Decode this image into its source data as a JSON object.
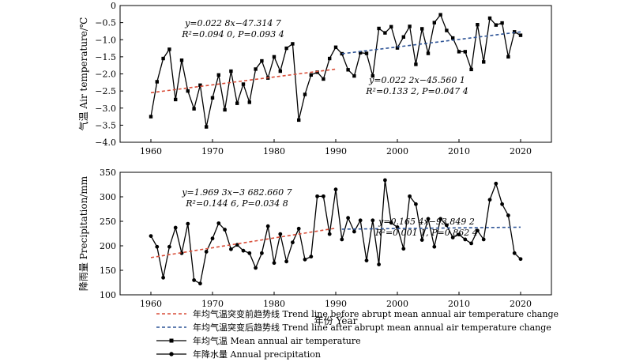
{
  "chart_data": [
    {
      "type": "line",
      "ylabel": "气温 Air temperature/℃",
      "xlabel": "",
      "xlim": [
        1955,
        2025
      ],
      "ylim": [
        -4.0,
        0
      ],
      "x_ticks": [
        1960,
        1970,
        1980,
        1990,
        2000,
        2010,
        2020
      ],
      "y_ticks": [
        -4.0,
        -3.5,
        -3.0,
        -2.5,
        -2.0,
        -1.5,
        -1.0,
        -0.5,
        0
      ],
      "y_tick_labels": [
        "−4.0",
        "−3.5",
        "−3.0",
        "−2.5",
        "−2.0",
        "−1.5",
        "−1.0",
        "−0.5",
        "0"
      ],
      "series": [
        {
          "name": "年均气温 Mean annual air temperature",
          "marker": "square",
          "color": "#000000",
          "x": [
            1960,
            1961,
            1962,
            1963,
            1964,
            1965,
            1966,
            1967,
            1968,
            1969,
            1970,
            1971,
            1972,
            1973,
            1974,
            1975,
            1976,
            1977,
            1978,
            1979,
            1980,
            1981,
            1982,
            1983,
            1984,
            1985,
            1986,
            1987,
            1988,
            1989,
            1990,
            1991,
            1992,
            1993,
            1994,
            1995,
            1996,
            1997,
            1998,
            1999,
            2000,
            2001,
            2002,
            2003,
            2004,
            2005,
            2006,
            2007,
            2008,
            2009,
            2010,
            2011,
            2012,
            2013,
            2014,
            2015,
            2016,
            2017,
            2018,
            2019,
            2020
          ],
          "values": [
            -3.25,
            -2.23,
            -1.55,
            -1.28,
            -2.75,
            -1.6,
            -2.5,
            -3.02,
            -2.33,
            -3.55,
            -2.7,
            -2.03,
            -3.05,
            -1.92,
            -2.86,
            -2.3,
            -2.83,
            -1.86,
            -1.62,
            -2.12,
            -1.5,
            -1.92,
            -1.25,
            -1.12,
            -3.35,
            -2.6,
            -2.03,
            -1.95,
            -2.15,
            -1.55,
            -1.22,
            -1.41,
            -1.88,
            -2.06,
            -1.38,
            -1.4,
            -2.06,
            -0.67,
            -0.8,
            -0.62,
            -1.24,
            -0.92,
            -0.61,
            -1.72,
            -0.68,
            -1.4,
            -0.5,
            -0.27,
            -0.73,
            -0.95,
            -1.35,
            -1.35,
            -1.87,
            -0.56,
            -1.65,
            -0.37,
            -0.57,
            -0.51,
            -1.5,
            -0.77,
            -0.87
          ]
        },
        {
          "name": "年均气温突变前趋势线 Trend line before abrupt mean annual air temperature change",
          "style": "dashed",
          "color": "#d94f3a",
          "x": [
            1960,
            1990
          ],
          "values": [
            -2.55,
            -1.86
          ]
        },
        {
          "name": "年均气温突变后趋势线 Trend line after abrupt mean annual air temperature change",
          "style": "dashed",
          "color": "#2f5597",
          "x": [
            1991,
            2020
          ],
          "values": [
            -1.41,
            -0.77
          ]
        }
      ],
      "annotations": [
        {
          "lines": [
            "y=0.022 8x−47.314 7",
            "R²=0.094 0, P=0.093 4"
          ]
        },
        {
          "lines": [
            "y=0.022 2x−45.560 1",
            "R²=0.133 2, P=0.047 4"
          ]
        }
      ]
    },
    {
      "type": "line",
      "ylabel": "降雨量 Precipitation/mm",
      "xlabel": "年份 Year",
      "xlim": [
        1955,
        2025
      ],
      "ylim": [
        100,
        350
      ],
      "x_ticks": [
        1960,
        1970,
        1980,
        1990,
        2000,
        2010,
        2020
      ],
      "y_ticks": [
        100,
        150,
        200,
        250,
        300,
        350
      ],
      "y_tick_labels": [
        "100",
        "150",
        "200",
        "250",
        "300",
        "350"
      ],
      "series": [
        {
          "name": "年降水量 Annual precipitation",
          "marker": "circle",
          "color": "#000000",
          "x": [
            1960,
            1961,
            1962,
            1963,
            1964,
            1965,
            1966,
            1967,
            1968,
            1969,
            1970,
            1971,
            1972,
            1973,
            1974,
            1975,
            1976,
            1977,
            1978,
            1979,
            1980,
            1981,
            1982,
            1983,
            1984,
            1985,
            1986,
            1987,
            1988,
            1989,
            1990,
            1991,
            1992,
            1993,
            1994,
            1995,
            1996,
            1997,
            1998,
            1999,
            2000,
            2001,
            2002,
            2003,
            2004,
            2005,
            2006,
            2007,
            2008,
            2009,
            2010,
            2011,
            2012,
            2013,
            2014,
            2015,
            2016,
            2017,
            2018,
            2019,
            2020
          ],
          "values": [
            220,
            198,
            135,
            198,
            237,
            185,
            245,
            130,
            123,
            188,
            215,
            246,
            233,
            193,
            202,
            190,
            185,
            155,
            185,
            240,
            165,
            224,
            168,
            207,
            235,
            172,
            178,
            301,
            301,
            224,
            315,
            213,
            257,
            229,
            252,
            170,
            252,
            162,
            334,
            247,
            238,
            194,
            301,
            285,
            212,
            255,
            198,
            255,
            242,
            217,
            223,
            213,
            205,
            231,
            213,
            294,
            327,
            285,
            262,
            185,
            173
          ]
        },
        {
          "name": "年均气温突变前趋势线 Trend line before abrupt mean annual air temperature change",
          "style": "dashed",
          "color": "#d94f3a",
          "x": [
            1960,
            1990
          ],
          "values": [
            176,
            236
          ]
        },
        {
          "name": "年均气温突变后趋势线 Trend line after abrupt mean annual air temperature change",
          "style": "dashed",
          "color": "#2f5597",
          "x": [
            1991,
            2020
          ],
          "values": [
            234,
            238
          ]
        }
      ],
      "annotations": [
        {
          "lines": [
            "y=1.969 3x−3 682.660 7",
            "R²=0.144 6, P=0.034 8"
          ]
        },
        {
          "lines": [
            "y=0.165 4x−93.849 2",
            "R²=0.001 1, P=0.862 4"
          ]
        }
      ]
    }
  ],
  "legend": {
    "items": [
      {
        "label": "年均气温突变前趋势线 Trend line before abrupt mean annual air temperature change",
        "kind": "dashed",
        "color": "#d94f3a"
      },
      {
        "label": "年均气温突变后趋势线 Trend line after abrupt mean annual air temperature change",
        "kind": "dashed",
        "color": "#2f5597"
      },
      {
        "label": "年均气温 Mean annual air temperature",
        "kind": "line-square",
        "color": "#000000"
      },
      {
        "label": "年降水量 Annual precipitation",
        "kind": "line-circle",
        "color": "#000000"
      }
    ]
  }
}
